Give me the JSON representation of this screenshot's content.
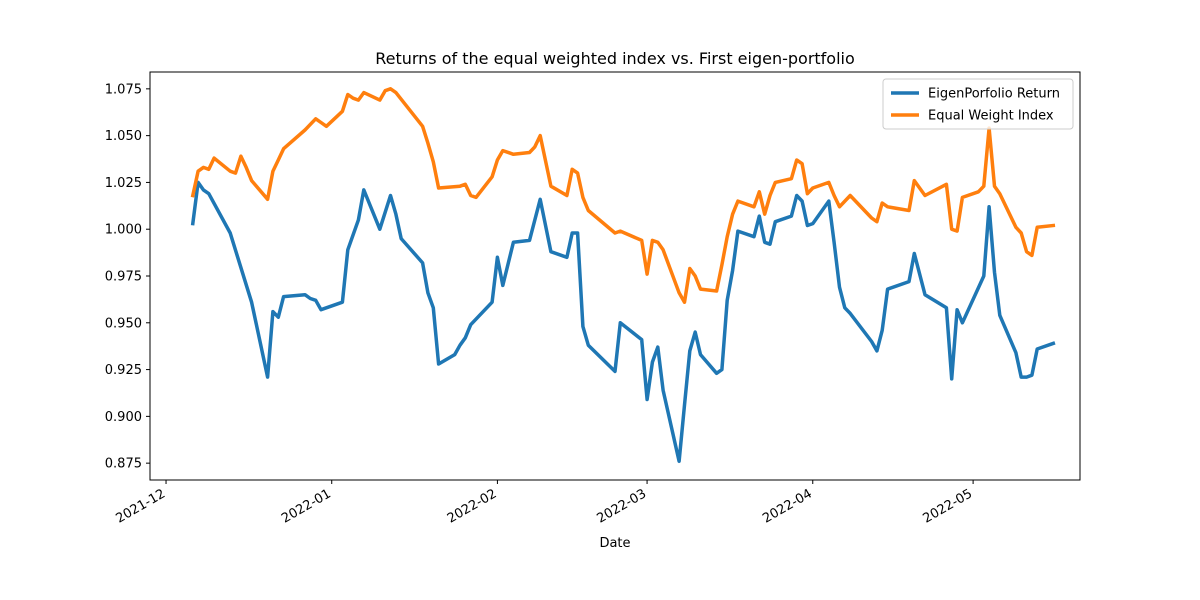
{
  "chart_data": {
    "type": "line",
    "title": "Returns of the equal weighted index vs. First eigen-portfolio",
    "xlabel": "Date",
    "ylabel": "",
    "grid": false,
    "legend_position": "top-right",
    "xlim": [
      "2021-11-28",
      "2022-05-21"
    ],
    "ylim": [
      0.866,
      1.084
    ],
    "x_ticks": [
      {
        "value": "2021-12-01",
        "label": "2021-12"
      },
      {
        "value": "2022-01-01",
        "label": "2022-01"
      },
      {
        "value": "2022-02-01",
        "label": "2022-02"
      },
      {
        "value": "2022-03-01",
        "label": "2022-03"
      },
      {
        "value": "2022-04-01",
        "label": "2022-04"
      },
      {
        "value": "2022-05-01",
        "label": "2022-05"
      }
    ],
    "y_ticks": [
      {
        "value": 0.875,
        "label": "0.875"
      },
      {
        "value": 0.9,
        "label": "0.900"
      },
      {
        "value": 0.925,
        "label": "0.925"
      },
      {
        "value": 0.95,
        "label": "0.950"
      },
      {
        "value": 0.975,
        "label": "0.975"
      },
      {
        "value": 1.0,
        "label": "1.000"
      },
      {
        "value": 1.025,
        "label": "1.025"
      },
      {
        "value": 1.05,
        "label": "1.050"
      },
      {
        "value": 1.075,
        "label": "1.075"
      }
    ],
    "series": [
      {
        "name": "EigenPorfolio Return",
        "color": "#1f77b4",
        "points": [
          [
            "2021-12-06",
            1.003
          ],
          [
            "2021-12-07",
            1.025
          ],
          [
            "2021-12-08",
            1.021
          ],
          [
            "2021-12-09",
            1.019
          ],
          [
            "2021-12-13",
            0.998
          ],
          [
            "2021-12-17",
            0.961
          ],
          [
            "2021-12-20",
            0.921
          ],
          [
            "2021-12-21",
            0.956
          ],
          [
            "2021-12-22",
            0.953
          ],
          [
            "2021-12-23",
            0.964
          ],
          [
            "2021-12-27",
            0.965
          ],
          [
            "2021-12-28",
            0.963
          ],
          [
            "2021-12-29",
            0.962
          ],
          [
            "2021-12-30",
            0.957
          ],
          [
            "2022-01-03",
            0.961
          ],
          [
            "2022-01-04",
            0.989
          ],
          [
            "2022-01-06",
            1.005
          ],
          [
            "2022-01-07",
            1.021
          ],
          [
            "2022-01-10",
            1.0
          ],
          [
            "2022-01-12",
            1.018
          ],
          [
            "2022-01-13",
            1.008
          ],
          [
            "2022-01-14",
            0.995
          ],
          [
            "2022-01-18",
            0.982
          ],
          [
            "2022-01-19",
            0.966
          ],
          [
            "2022-01-20",
            0.958
          ],
          [
            "2022-01-21",
            0.928
          ],
          [
            "2022-01-24",
            0.933
          ],
          [
            "2022-01-25",
            0.938
          ],
          [
            "2022-01-26",
            0.942
          ],
          [
            "2022-01-27",
            0.949
          ],
          [
            "2022-01-31",
            0.961
          ],
          [
            "2022-02-01",
            0.985
          ],
          [
            "2022-02-02",
            0.97
          ],
          [
            "2022-02-04",
            0.993
          ],
          [
            "2022-02-07",
            0.994
          ],
          [
            "2022-02-09",
            1.016
          ],
          [
            "2022-02-11",
            0.988
          ],
          [
            "2022-02-14",
            0.985
          ],
          [
            "2022-02-15",
            0.998
          ],
          [
            "2022-02-16",
            0.998
          ],
          [
            "2022-02-17",
            0.948
          ],
          [
            "2022-02-18",
            0.938
          ],
          [
            "2022-02-23",
            0.924
          ],
          [
            "2022-02-24",
            0.95
          ],
          [
            "2022-02-28",
            0.941
          ],
          [
            "2022-03-01",
            0.909
          ],
          [
            "2022-03-02",
            0.929
          ],
          [
            "2022-03-03",
            0.937
          ],
          [
            "2022-03-04",
            0.914
          ],
          [
            "2022-03-07",
            0.876
          ],
          [
            "2022-03-08",
            0.906
          ],
          [
            "2022-03-09",
            0.935
          ],
          [
            "2022-03-10",
            0.945
          ],
          [
            "2022-03-11",
            0.933
          ],
          [
            "2022-03-14",
            0.923
          ],
          [
            "2022-03-15",
            0.925
          ],
          [
            "2022-03-16",
            0.962
          ],
          [
            "2022-03-17",
            0.978
          ],
          [
            "2022-03-18",
            0.999
          ],
          [
            "2022-03-21",
            0.996
          ],
          [
            "2022-03-22",
            1.007
          ],
          [
            "2022-03-23",
            0.993
          ],
          [
            "2022-03-24",
            0.992
          ],
          [
            "2022-03-25",
            1.004
          ],
          [
            "2022-03-28",
            1.007
          ],
          [
            "2022-03-29",
            1.018
          ],
          [
            "2022-03-30",
            1.015
          ],
          [
            "2022-03-31",
            1.002
          ],
          [
            "2022-04-01",
            1.003
          ],
          [
            "2022-04-04",
            1.015
          ],
          [
            "2022-04-05",
            0.993
          ],
          [
            "2022-04-06",
            0.969
          ],
          [
            "2022-04-07",
            0.958
          ],
          [
            "2022-04-08",
            0.955
          ],
          [
            "2022-04-12",
            0.94
          ],
          [
            "2022-04-13",
            0.935
          ],
          [
            "2022-04-14",
            0.946
          ],
          [
            "2022-04-15",
            0.968
          ],
          [
            "2022-04-19",
            0.972
          ],
          [
            "2022-04-20",
            0.987
          ],
          [
            "2022-04-22",
            0.965
          ],
          [
            "2022-04-26",
            0.958
          ],
          [
            "2022-04-27",
            0.92
          ],
          [
            "2022-04-28",
            0.957
          ],
          [
            "2022-04-29",
            0.95
          ],
          [
            "2022-05-03",
            0.975
          ],
          [
            "2022-05-04",
            1.012
          ],
          [
            "2022-05-05",
            0.977
          ],
          [
            "2022-05-06",
            0.954
          ],
          [
            "2022-05-09",
            0.934
          ],
          [
            "2022-05-10",
            0.921
          ],
          [
            "2022-05-11",
            0.921
          ],
          [
            "2022-05-12",
            0.922
          ],
          [
            "2022-05-13",
            0.936
          ],
          [
            "2022-05-16",
            0.939
          ]
        ]
      },
      {
        "name": "Equal Weight Index",
        "color": "#ff7f0e",
        "points": [
          [
            "2021-12-06",
            1.018
          ],
          [
            "2021-12-07",
            1.031
          ],
          [
            "2021-12-08",
            1.033
          ],
          [
            "2021-12-09",
            1.032
          ],
          [
            "2021-12-10",
            1.038
          ],
          [
            "2021-12-13",
            1.031
          ],
          [
            "2021-12-14",
            1.03
          ],
          [
            "2021-12-15",
            1.039
          ],
          [
            "2021-12-16",
            1.033
          ],
          [
            "2021-12-17",
            1.026
          ],
          [
            "2021-12-20",
            1.016
          ],
          [
            "2021-12-21",
            1.031
          ],
          [
            "2021-12-22",
            1.037
          ],
          [
            "2021-12-23",
            1.043
          ],
          [
            "2021-12-27",
            1.053
          ],
          [
            "2021-12-28",
            1.056
          ],
          [
            "2021-12-29",
            1.059
          ],
          [
            "2021-12-30",
            1.057
          ],
          [
            "2021-12-31",
            1.055
          ],
          [
            "2022-01-03",
            1.063
          ],
          [
            "2022-01-04",
            1.072
          ],
          [
            "2022-01-05",
            1.07
          ],
          [
            "2022-01-06",
            1.069
          ],
          [
            "2022-01-07",
            1.073
          ],
          [
            "2022-01-10",
            1.069
          ],
          [
            "2022-01-11",
            1.074
          ],
          [
            "2022-01-12",
            1.075
          ],
          [
            "2022-01-13",
            1.073
          ],
          [
            "2022-01-18",
            1.055
          ],
          [
            "2022-01-19",
            1.046
          ],
          [
            "2022-01-20",
            1.036
          ],
          [
            "2022-01-21",
            1.022
          ],
          [
            "2022-01-25",
            1.023
          ],
          [
            "2022-01-26",
            1.024
          ],
          [
            "2022-01-27",
            1.018
          ],
          [
            "2022-01-28",
            1.017
          ],
          [
            "2022-01-31",
            1.028
          ],
          [
            "2022-02-01",
            1.037
          ],
          [
            "2022-02-02",
            1.042
          ],
          [
            "2022-02-04",
            1.04
          ],
          [
            "2022-02-07",
            1.041
          ],
          [
            "2022-02-08",
            1.044
          ],
          [
            "2022-02-09",
            1.05
          ],
          [
            "2022-02-11",
            1.023
          ],
          [
            "2022-02-14",
            1.018
          ],
          [
            "2022-02-15",
            1.032
          ],
          [
            "2022-02-16",
            1.03
          ],
          [
            "2022-02-17",
            1.017
          ],
          [
            "2022-02-18",
            1.01
          ],
          [
            "2022-02-23",
            0.998
          ],
          [
            "2022-02-24",
            0.999
          ],
          [
            "2022-02-28",
            0.994
          ],
          [
            "2022-03-01",
            0.976
          ],
          [
            "2022-03-02",
            0.994
          ],
          [
            "2022-03-03",
            0.993
          ],
          [
            "2022-03-04",
            0.989
          ],
          [
            "2022-03-07",
            0.966
          ],
          [
            "2022-03-08",
            0.961
          ],
          [
            "2022-03-09",
            0.979
          ],
          [
            "2022-03-10",
            0.975
          ],
          [
            "2022-03-11",
            0.968
          ],
          [
            "2022-03-14",
            0.967
          ],
          [
            "2022-03-15",
            0.981
          ],
          [
            "2022-03-16",
            0.996
          ],
          [
            "2022-03-17",
            1.008
          ],
          [
            "2022-03-18",
            1.015
          ],
          [
            "2022-03-21",
            1.012
          ],
          [
            "2022-03-22",
            1.02
          ],
          [
            "2022-03-23",
            1.008
          ],
          [
            "2022-03-24",
            1.018
          ],
          [
            "2022-03-25",
            1.025
          ],
          [
            "2022-03-28",
            1.027
          ],
          [
            "2022-03-29",
            1.037
          ],
          [
            "2022-03-30",
            1.035
          ],
          [
            "2022-03-31",
            1.019
          ],
          [
            "2022-04-01",
            1.022
          ],
          [
            "2022-04-04",
            1.025
          ],
          [
            "2022-04-05",
            1.018
          ],
          [
            "2022-04-06",
            1.012
          ],
          [
            "2022-04-08",
            1.018
          ],
          [
            "2022-04-12",
            1.006
          ],
          [
            "2022-04-13",
            1.004
          ],
          [
            "2022-04-14",
            1.014
          ],
          [
            "2022-04-15",
            1.012
          ],
          [
            "2022-04-19",
            1.01
          ],
          [
            "2022-04-20",
            1.026
          ],
          [
            "2022-04-22",
            1.018
          ],
          [
            "2022-04-26",
            1.024
          ],
          [
            "2022-04-27",
            1.0
          ],
          [
            "2022-04-28",
            0.999
          ],
          [
            "2022-04-29",
            1.017
          ],
          [
            "2022-05-02",
            1.02
          ],
          [
            "2022-05-03",
            1.023
          ],
          [
            "2022-05-04",
            1.054
          ],
          [
            "2022-05-05",
            1.023
          ],
          [
            "2022-05-06",
            1.019
          ],
          [
            "2022-05-09",
            1.001
          ],
          [
            "2022-05-10",
            0.998
          ],
          [
            "2022-05-11",
            0.988
          ],
          [
            "2022-05-12",
            0.986
          ],
          [
            "2022-05-13",
            1.001
          ],
          [
            "2022-05-16",
            1.002
          ]
        ]
      }
    ]
  }
}
